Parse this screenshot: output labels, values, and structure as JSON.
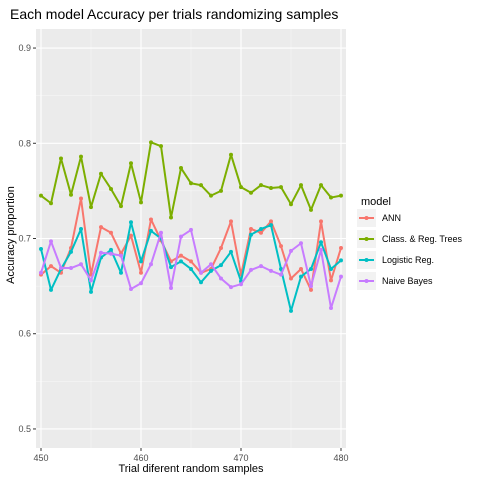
{
  "chart_data": {
    "type": "line",
    "title": "Each model Accuracy per trials randomizing samples",
    "xlabel": "Trial diferent random samples",
    "ylabel": "Accuracy proportion",
    "xlim": [
      449.5,
      480.5
    ],
    "ylim": [
      0.48,
      0.92
    ],
    "x_ticks": [
      450,
      460,
      470,
      480
    ],
    "y_ticks": [
      0.5,
      0.6,
      0.7,
      0.8,
      0.9
    ],
    "x_tick_labels": [
      "450",
      "460",
      "470",
      "480"
    ],
    "y_tick_labels": [
      "0.5",
      "0.6",
      "0.7",
      "0.8",
      "0.9"
    ],
    "grid": true,
    "legend": {
      "title": "model",
      "position": "right"
    },
    "x": [
      450,
      451,
      452,
      453,
      454,
      455,
      456,
      457,
      458,
      459,
      460,
      461,
      462,
      463,
      464,
      465,
      466,
      467,
      468,
      469,
      470,
      471,
      472,
      473,
      474,
      475,
      476,
      477,
      478,
      479,
      480
    ],
    "series": [
      {
        "name": "ANN",
        "color": "#F8766D",
        "values": [
          0.662,
          0.671,
          0.664,
          0.69,
          0.742,
          0.662,
          0.712,
          0.706,
          0.684,
          0.703,
          0.664,
          0.72,
          0.698,
          0.676,
          0.682,
          0.676,
          0.664,
          0.668,
          0.69,
          0.718,
          0.662,
          0.71,
          0.706,
          0.718,
          0.692,
          0.658,
          0.668,
          0.646,
          0.718,
          0.656,
          0.69
        ]
      },
      {
        "name": "Class. & Reg. Trees",
        "color": "#7CAE00",
        "values": [
          0.745,
          0.737,
          0.784,
          0.746,
          0.786,
          0.733,
          0.768,
          0.752,
          0.734,
          0.779,
          0.738,
          0.801,
          0.797,
          0.722,
          0.774,
          0.758,
          0.756,
          0.745,
          0.75,
          0.788,
          0.754,
          0.748,
          0.756,
          0.753,
          0.754,
          0.736,
          0.756,
          0.73,
          0.756,
          0.743,
          0.745
        ]
      },
      {
        "name": "Logistic Reg.",
        "color": "#00BFC4",
        "values": [
          0.689,
          0.646,
          0.668,
          0.686,
          0.71,
          0.644,
          0.68,
          0.688,
          0.664,
          0.717,
          0.676,
          0.708,
          0.7,
          0.67,
          0.676,
          0.668,
          0.654,
          0.666,
          0.672,
          0.686,
          0.655,
          0.704,
          0.71,
          0.714,
          0.668,
          0.624,
          0.66,
          0.668,
          0.696,
          0.668,
          0.677
        ]
      },
      {
        "name": "Naive Bayes",
        "color": "#C77CFF",
        "values": [
          0.664,
          0.697,
          0.669,
          0.669,
          0.673,
          0.656,
          0.685,
          0.684,
          0.682,
          0.647,
          0.653,
          0.673,
          0.706,
          0.648,
          0.702,
          0.709,
          0.664,
          0.673,
          0.658,
          0.649,
          0.652,
          0.667,
          0.671,
          0.666,
          0.662,
          0.687,
          0.695,
          0.65,
          0.688,
          0.627,
          0.66
        ]
      }
    ]
  }
}
